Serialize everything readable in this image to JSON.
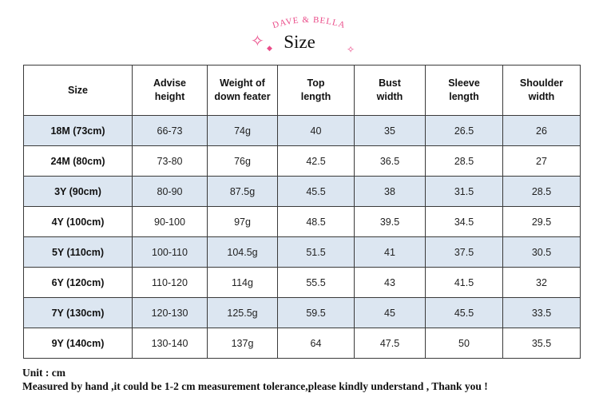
{
  "header": {
    "brand": "DAVE & BELLA",
    "title": "Size",
    "brand_color": "#ea4c89",
    "sparkle_icons": [
      "sparkle-star-icon",
      "sparkle-diamond-icon",
      "sparkle-diamond-icon"
    ]
  },
  "table": {
    "header_fill": "#ffffff",
    "shaded_row_fill": "#dce6f1",
    "columns": [
      {
        "line1": "Size",
        "line2": ""
      },
      {
        "line1": "Advise",
        "line2": "height"
      },
      {
        "line1": "Weight of",
        "line2": "down feater"
      },
      {
        "line1": "Top",
        "line2": "length"
      },
      {
        "line1": "Bust",
        "line2": "width"
      },
      {
        "line1": "Sleeve",
        "line2": "length"
      },
      {
        "line1": "Shoulder",
        "line2": "width"
      }
    ],
    "rows": [
      [
        "18M (73cm)",
        "66-73",
        "74g",
        "40",
        "35",
        "26.5",
        "26"
      ],
      [
        "24M (80cm)",
        "73-80",
        "76g",
        "42.5",
        "36.5",
        "28.5",
        "27"
      ],
      [
        "3Y (90cm)",
        "80-90",
        "87.5g",
        "45.5",
        "38",
        "31.5",
        "28.5"
      ],
      [
        "4Y (100cm)",
        "90-100",
        "97g",
        "48.5",
        "39.5",
        "34.5",
        "29.5"
      ],
      [
        "5Y (110cm)",
        "100-110",
        "104.5g",
        "51.5",
        "41",
        "37.5",
        "30.5"
      ],
      [
        "6Y (120cm)",
        "110-120",
        "114g",
        "55.5",
        "43",
        "41.5",
        "32"
      ],
      [
        "7Y (130cm)",
        "120-130",
        "125.5g",
        "59.5",
        "45",
        "45.5",
        "33.5"
      ],
      [
        "9Y (140cm)",
        "130-140",
        "137g",
        "64",
        "47.5",
        "50",
        "35.5"
      ]
    ]
  },
  "footer": {
    "unit": "Unit : cm",
    "note": "Measured by hand ,it could be 1-2 cm measurement tolerance,please kindly understand , Thank you !"
  }
}
